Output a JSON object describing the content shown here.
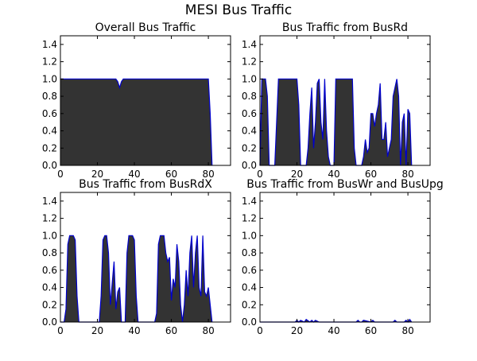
{
  "figure": {
    "title": "MESI Bus Traffic",
    "fill_color": "#333333",
    "line_color": "#0000cc"
  },
  "chart_data": [
    {
      "type": "area",
      "title": "Overall Bus Traffic",
      "xlabel": "",
      "ylabel": "",
      "xlim": [
        0,
        92
      ],
      "ylim": [
        0,
        1.5
      ],
      "xticks": [
        0,
        20,
        40,
        60,
        80
      ],
      "yticks": [
        0.0,
        0.2,
        0.4,
        0.6,
        0.8,
        1.0,
        1.2,
        1.4
      ],
      "grid": false,
      "x": [
        0,
        10,
        20,
        30,
        31,
        32,
        33,
        34,
        40,
        50,
        60,
        70,
        80,
        81,
        82
      ],
      "y": [
        1.0,
        1.0,
        1.0,
        1.0,
        0.97,
        0.9,
        0.97,
        1.0,
        1.0,
        1.0,
        1.0,
        1.0,
        1.0,
        0.6,
        0.0
      ]
    },
    {
      "type": "area",
      "title": "Bus Traffic from BusRd",
      "xlabel": "",
      "ylabel": "",
      "xlim": [
        0,
        92
      ],
      "ylim": [
        0,
        1.5
      ],
      "xticks": [
        0,
        20,
        40,
        60,
        80
      ],
      "yticks": [
        0.0,
        0.2,
        0.4,
        0.6,
        0.8,
        1.0,
        1.2,
        1.4
      ],
      "grid": false,
      "x": [
        0,
        1,
        3,
        4,
        5,
        7,
        8,
        10,
        12,
        14,
        16,
        18,
        20,
        21,
        22,
        24,
        25,
        26,
        27,
        28,
        29,
        30,
        31,
        32,
        33,
        34,
        35,
        36,
        37,
        38,
        39,
        40,
        41,
        42,
        44,
        46,
        48,
        50,
        51,
        52,
        53,
        54,
        55,
        56,
        57,
        58,
        59,
        60,
        61,
        62,
        63,
        64,
        65,
        66,
        67,
        68,
        69,
        70,
        71,
        72,
        73,
        74,
        75,
        76,
        77,
        78,
        79,
        80,
        81,
        82
      ],
      "y": [
        0.0,
        1.0,
        1.0,
        0.8,
        0.0,
        0.0,
        0.0,
        1.0,
        1.0,
        1.0,
        1.0,
        1.0,
        1.0,
        0.7,
        0.0,
        0.0,
        0.0,
        0.2,
        0.6,
        0.9,
        0.2,
        0.5,
        0.95,
        1.0,
        0.5,
        0.3,
        1.0,
        0.4,
        0.1,
        0.0,
        0.0,
        0.0,
        1.0,
        1.0,
        1.0,
        1.0,
        1.0,
        1.0,
        0.2,
        0.0,
        0.0,
        0.0,
        0.0,
        0.1,
        0.3,
        0.15,
        0.2,
        0.6,
        0.6,
        0.45,
        0.6,
        0.7,
        0.95,
        0.3,
        0.3,
        0.5,
        0.1,
        0.2,
        0.3,
        0.8,
        0.9,
        1.0,
        0.8,
        0.0,
        0.5,
        0.6,
        0.0,
        0.65,
        0.6,
        0.0
      ]
    },
    {
      "type": "area",
      "title": "Bus Traffic from BusRdX",
      "xlabel": "",
      "ylabel": "",
      "xlim": [
        0,
        92
      ],
      "ylim": [
        0,
        1.5
      ],
      "xticks": [
        0,
        20,
        40,
        60,
        80
      ],
      "yticks": [
        0.0,
        0.2,
        0.4,
        0.6,
        0.8,
        1.0,
        1.2,
        1.4
      ],
      "grid": false,
      "x": [
        0,
        2,
        3,
        4,
        5,
        7,
        8,
        9,
        10,
        12,
        14,
        16,
        18,
        20,
        21,
        22,
        23,
        24,
        25,
        26,
        27,
        28,
        29,
        30,
        31,
        32,
        33,
        34,
        35,
        36,
        37,
        38,
        39,
        40,
        41,
        42,
        44,
        46,
        48,
        50,
        51,
        52,
        53,
        54,
        55,
        56,
        57,
        58,
        59,
        60,
        61,
        62,
        63,
        64,
        65,
        66,
        67,
        68,
        69,
        70,
        71,
        72,
        73,
        74,
        75,
        76,
        77,
        78,
        79,
        80,
        81,
        82
      ],
      "y": [
        0.0,
        0.0,
        0.15,
        0.9,
        1.0,
        1.0,
        0.95,
        0.3,
        0.0,
        0.0,
        0.0,
        0.0,
        0.0,
        0.0,
        0.0,
        0.3,
        0.95,
        1.0,
        1.0,
        0.8,
        0.2,
        0.45,
        0.7,
        0.15,
        0.35,
        0.4,
        0.0,
        0.0,
        0.0,
        0.8,
        1.0,
        1.0,
        1.0,
        0.95,
        0.3,
        0.0,
        0.0,
        0.0,
        0.0,
        0.0,
        0.0,
        0.1,
        0.9,
        1.0,
        1.0,
        1.0,
        0.8,
        0.7,
        0.75,
        0.25,
        0.5,
        0.4,
        0.9,
        0.7,
        0.2,
        0.0,
        0.2,
        0.6,
        0.3,
        0.8,
        1.0,
        0.4,
        0.8,
        1.0,
        0.4,
        0.3,
        1.0,
        0.35,
        0.3,
        0.4,
        0.2,
        0.0
      ]
    },
    {
      "type": "area",
      "title": "Bus Traffic from BusWr and BusUpg",
      "xlabel": "",
      "ylabel": "",
      "xlim": [
        0,
        92
      ],
      "ylim": [
        0,
        1.5
      ],
      "xticks": [
        0,
        20,
        40,
        60,
        80
      ],
      "yticks": [
        0.0,
        0.2,
        0.4,
        0.6,
        0.8,
        1.0,
        1.2,
        1.4
      ],
      "grid": false,
      "x": [
        0,
        19,
        20,
        21,
        22,
        24,
        25,
        27,
        28,
        29,
        30,
        32,
        52,
        53,
        54,
        55,
        56,
        60,
        61,
        62,
        63,
        72,
        73,
        74,
        78,
        79,
        80,
        81,
        82
      ],
      "y": [
        0.0,
        0.0,
        0.02,
        0.0,
        0.02,
        0.0,
        0.03,
        0.0,
        0.02,
        0.0,
        0.02,
        0.0,
        0.0,
        0.02,
        0.0,
        0.0,
        0.02,
        0.0,
        0.02,
        0.0,
        0.0,
        0.0,
        0.02,
        0.0,
        0.0,
        0.02,
        0.0,
        0.03,
        0.0
      ]
    }
  ]
}
